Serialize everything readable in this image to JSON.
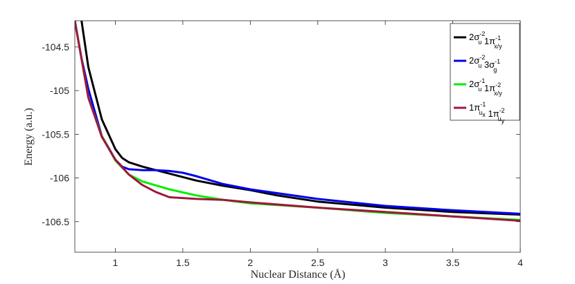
{
  "chart_data": {
    "type": "line",
    "title": "",
    "xlabel": "Nuclear Distance (Å)",
    "ylabel": "Energy (a.u.)",
    "xlim": [
      0.7,
      4.0
    ],
    "ylim": [
      -106.85,
      -104.2
    ],
    "xticks": [
      1,
      1.5,
      2,
      2.5,
      3,
      3.5,
      4
    ],
    "xtick_labels": [
      "1",
      "1.5",
      "2",
      "2.5",
      "3",
      "3.5",
      "4"
    ],
    "yticks": [
      -104.5,
      -105,
      -105.5,
      -106,
      -106.5
    ],
    "ytick_labels": [
      "-104.5",
      "-105",
      "-105.5",
      "-106",
      "-106.5"
    ],
    "grid": false,
    "legend_position": "top-right",
    "series": [
      {
        "color": "#000000",
        "legend": {
          "base1": "2σ",
          "sup1": "-2",
          "sub1": "u",
          "base2": " 1π",
          "sup2": "-1",
          "sub2": "x/y",
          "tail": ""
        },
        "x": [
          0.7,
          0.75,
          0.8,
          0.9,
          1.0,
          1.05,
          1.1,
          1.2,
          1.3,
          1.4,
          1.6,
          1.8,
          2.0,
          2.2,
          2.5,
          3.0,
          3.5,
          4.0
        ],
        "y": [
          -103.5,
          -104.2,
          -104.73,
          -105.33,
          -105.67,
          -105.77,
          -105.82,
          -105.87,
          -105.91,
          -105.95,
          -106.03,
          -106.09,
          -106.14,
          -106.2,
          -106.27,
          -106.34,
          -106.39,
          -106.42
        ]
      },
      {
        "color": "#0000ee",
        "legend": {
          "base1": "2σ",
          "sup1": "-2",
          "sub1": "u",
          "base2": " 3σ",
          "sup2": "-1",
          "sub2": "g",
          "tail": ""
        },
        "x": [
          0.7,
          0.75,
          0.8,
          0.9,
          1.0,
          1.05,
          1.1,
          1.2,
          1.3,
          1.4,
          1.5,
          1.6,
          1.8,
          2.0,
          2.5,
          3.0,
          3.5,
          4.0
        ],
        "y": [
          -104.2,
          -104.63,
          -104.98,
          -105.52,
          -105.79,
          -105.87,
          -105.9,
          -105.91,
          -105.91,
          -105.92,
          -105.94,
          -105.98,
          -106.07,
          -106.13,
          -106.24,
          -106.32,
          -106.37,
          -106.41
        ]
      },
      {
        "color": "#00ee00",
        "legend": {
          "base1": "2σ",
          "sup1": "-1",
          "sub1": "u",
          "base2": " 1π",
          "sup2": "-2",
          "sub2": "x/y",
          "tail": ""
        },
        "x": [
          0.7,
          0.8,
          0.9,
          1.0,
          1.1,
          1.2,
          1.4,
          1.6,
          1.8,
          2.0,
          2.5,
          3.0,
          3.5,
          4.0
        ],
        "y": [
          -104.2,
          -105.08,
          -105.52,
          -105.8,
          -105.96,
          -106.04,
          -106.13,
          -106.2,
          -106.25,
          -106.29,
          -106.34,
          -106.4,
          -106.44,
          -106.48
        ]
      },
      {
        "color": "#a0173a",
        "legend": {
          "base1": "1π",
          "sup1": "-1",
          "sub1": "u",
          "subsub1": "x",
          "base2": " 1π",
          "sup2": "-2",
          "sub2": "u",
          "subsub2": "y",
          "tail": ""
        },
        "x": [
          0.7,
          0.8,
          0.9,
          1.0,
          1.1,
          1.2,
          1.3,
          1.4,
          1.6,
          1.8,
          2.0,
          2.5,
          3.0,
          3.5,
          4.0
        ],
        "y": [
          -104.2,
          -105.08,
          -105.53,
          -105.79,
          -105.96,
          -106.08,
          -106.16,
          -106.22,
          -106.24,
          -106.25,
          -106.28,
          -106.34,
          -106.39,
          -106.44,
          -106.49
        ]
      }
    ]
  }
}
